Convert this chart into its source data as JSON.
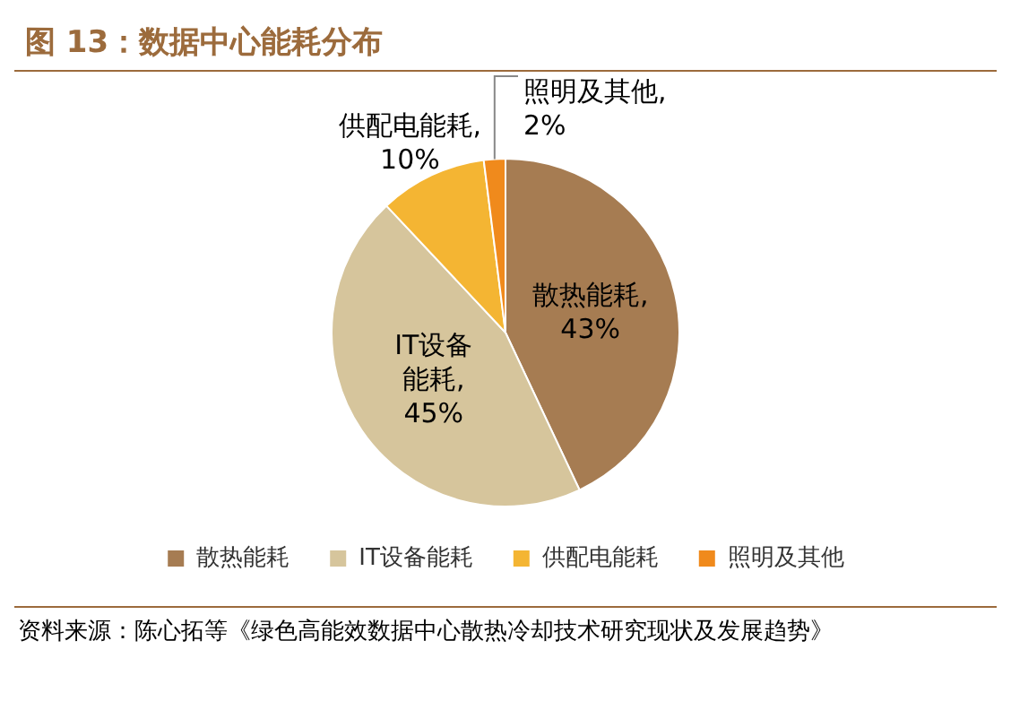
{
  "chart_data": {
    "type": "pie",
    "title": "图 13：数据中心能耗分布",
    "categories": [
      "散热能耗",
      "IT设备能耗",
      "供配电能耗",
      "照明及其他"
    ],
    "values": [
      43,
      45,
      10,
      2
    ],
    "colors": [
      "#a67c52",
      "#d6c59c",
      "#f4b533",
      "#f08a1c"
    ],
    "value_labels": [
      "散热能耗,43%",
      "IT设备能耗,45%",
      "供配电能耗,10%",
      "照明及其他,2%"
    ],
    "legend": "bottom",
    "annotations": [
      "资料来源：陈心拓等《绿色高能效数据中心散热冷却技术研究现状及发展趋势》"
    ]
  }
}
